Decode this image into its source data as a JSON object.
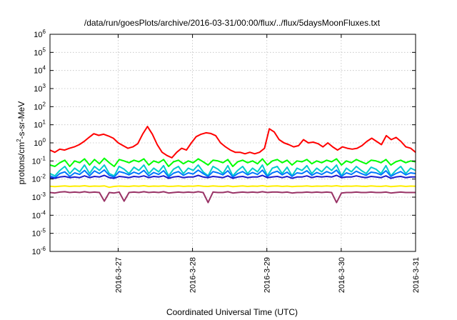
{
  "chart_data": {
    "type": "line",
    "title": "/data/run/goesPlots/archive/2016-03-31/00:00/flux/../flux/5daysMoonFluxes.txt",
    "xlabel": "Coordinated Universal Time (UTC)",
    "ylabel_parts": [
      "protons/cm",
      "2",
      "-s-sr-MeV"
    ],
    "y_scale": "log",
    "ylim_exp": [
      -6,
      6
    ],
    "y_ticks": [
      {
        "base": "10",
        "exp": "-6"
      },
      {
        "base": "10",
        "exp": "-5"
      },
      {
        "base": "10",
        "exp": "-4"
      },
      {
        "base": "10",
        "exp": "-3"
      },
      {
        "base": "10",
        "exp": "-2"
      },
      {
        "base": "10",
        "exp": "-1"
      },
      {
        "base": "10",
        "exp": "0"
      },
      {
        "base": "10",
        "exp": "1"
      },
      {
        "base": "10",
        "exp": "2"
      },
      {
        "base": "10",
        "exp": "3"
      },
      {
        "base": "10",
        "exp": "4"
      },
      {
        "base": "10",
        "exp": "5"
      },
      {
        "base": "10",
        "exp": "6"
      }
    ],
    "x_range": [
      "2016-03-26 02:00",
      "2016-03-31 00:00"
    ],
    "x_ticks": [
      "2016-3-27",
      "2016-3-28",
      "2016-3-29",
      "2016-3-30",
      "2016-3-31"
    ],
    "grid": true,
    "series": [
      {
        "color": "#ff0000",
        "values": [
          0.4,
          0.3,
          0.45,
          0.4,
          0.5,
          0.6,
          0.8,
          1.2,
          2.0,
          3.2,
          2.6,
          3.0,
          2.4,
          1.8,
          1.0,
          0.7,
          0.5,
          0.6,
          0.9,
          3.0,
          8.0,
          3.0,
          0.8,
          0.3,
          0.2,
          0.15,
          0.3,
          0.5,
          0.4,
          1.0,
          2.2,
          3.0,
          3.6,
          3.3,
          2.5,
          1.0,
          0.6,
          0.4,
          0.3,
          0.3,
          0.25,
          0.3,
          0.25,
          0.3,
          0.5,
          6.0,
          4.0,
          1.5,
          1.0,
          0.8,
          0.6,
          0.7,
          1.5,
          1.0,
          1.1,
          0.9,
          0.6,
          1.0,
          0.6,
          0.4,
          0.6,
          0.5,
          0.45,
          0.5,
          0.7,
          1.2,
          1.8,
          1.2,
          0.8,
          2.5,
          1.5,
          2.0,
          1.2,
          0.6,
          0.5,
          0.3
        ]
      },
      {
        "color": "#00ff00",
        "values": [
          0.06,
          0.05,
          0.08,
          0.11,
          0.05,
          0.1,
          0.08,
          0.13,
          0.06,
          0.12,
          0.07,
          0.14,
          0.08,
          0.05,
          0.12,
          0.1,
          0.08,
          0.11,
          0.09,
          0.13,
          0.06,
          0.1,
          0.08,
          0.12,
          0.05,
          0.09,
          0.11,
          0.07,
          0.1,
          0.08,
          0.13,
          0.09,
          0.06,
          0.11,
          0.1,
          0.08,
          0.12,
          0.05,
          0.09,
          0.11,
          0.08,
          0.1,
          0.07,
          0.13,
          0.06,
          0.1,
          0.12,
          0.08,
          0.11,
          0.06,
          0.1,
          0.09,
          0.12,
          0.07,
          0.1,
          0.08,
          0.11,
          0.09,
          0.13,
          0.06,
          0.1,
          0.08,
          0.12,
          0.09,
          0.07,
          0.11,
          0.1,
          0.08,
          0.12,
          0.06,
          0.09,
          0.11,
          0.08,
          0.1,
          0.09
        ]
      },
      {
        "color": "#00cccc",
        "values": [
          0.02,
          0.015,
          0.03,
          0.05,
          0.02,
          0.04,
          0.025,
          0.06,
          0.02,
          0.05,
          0.03,
          0.06,
          0.02,
          0.015,
          0.05,
          0.035,
          0.02,
          0.045,
          0.03,
          0.06,
          0.02,
          0.04,
          0.025,
          0.055,
          0.015,
          0.035,
          0.05,
          0.02,
          0.04,
          0.03,
          0.06,
          0.025,
          0.015,
          0.05,
          0.035,
          0.02,
          0.055,
          0.015,
          0.03,
          0.05,
          0.02,
          0.04,
          0.025,
          0.06,
          0.015,
          0.04,
          0.05,
          0.02,
          0.045,
          0.015,
          0.04,
          0.03,
          0.055,
          0.02,
          0.04,
          0.025,
          0.05,
          0.03,
          0.06,
          0.015,
          0.04,
          0.025,
          0.05,
          0.03,
          0.02,
          0.045,
          0.035,
          0.02,
          0.055,
          0.015,
          0.03,
          0.05,
          0.02,
          0.04,
          0.03
        ]
      },
      {
        "color": "#0077ff",
        "values": [
          0.015,
          0.012,
          0.02,
          0.025,
          0.014,
          0.022,
          0.018,
          0.03,
          0.015,
          0.028,
          0.02,
          0.032,
          0.016,
          0.013,
          0.026,
          0.022,
          0.017,
          0.024,
          0.019,
          0.03,
          0.015,
          0.023,
          0.018,
          0.029,
          0.013,
          0.021,
          0.026,
          0.016,
          0.022,
          0.019,
          0.031,
          0.02,
          0.014,
          0.026,
          0.022,
          0.017,
          0.029,
          0.013,
          0.02,
          0.026,
          0.017,
          0.023,
          0.018,
          0.031,
          0.014,
          0.022,
          0.027,
          0.017,
          0.024,
          0.014,
          0.022,
          0.02,
          0.029,
          0.016,
          0.023,
          0.018,
          0.026,
          0.02,
          0.031,
          0.014,
          0.022,
          0.018,
          0.027,
          0.02,
          0.016,
          0.024,
          0.022,
          0.017,
          0.029,
          0.014,
          0.02,
          0.026,
          0.017,
          0.022,
          0.02
        ]
      },
      {
        "color": "#1a1acc",
        "values": [
          0.012,
          0.011,
          0.013,
          0.014,
          0.012,
          0.013,
          0.012,
          0.015,
          0.012,
          0.014,
          0.013,
          0.016,
          0.012,
          0.011,
          0.014,
          0.013,
          0.012,
          0.014,
          0.013,
          0.015,
          0.012,
          0.014,
          0.013,
          0.015,
          0.011,
          0.013,
          0.014,
          0.012,
          0.013,
          0.013,
          0.016,
          0.013,
          0.012,
          0.014,
          0.013,
          0.012,
          0.015,
          0.011,
          0.013,
          0.014,
          0.012,
          0.013,
          0.013,
          0.016,
          0.012,
          0.013,
          0.014,
          0.012,
          0.014,
          0.011,
          0.013,
          0.013,
          0.015,
          0.012,
          0.014,
          0.013,
          0.014,
          0.013,
          0.016,
          0.012,
          0.013,
          0.013,
          0.015,
          0.013,
          0.012,
          0.014,
          0.013,
          0.012,
          0.015,
          0.011,
          0.013,
          0.014,
          0.012,
          0.013,
          0.013
        ]
      },
      {
        "color": "#ffee00",
        "values": [
          0.004,
          0.0038,
          0.004,
          0.0042,
          0.0039,
          0.0041,
          0.004,
          0.0043,
          0.0039,
          0.0041,
          0.004,
          0.0042,
          0.0035,
          0.0039,
          0.0041,
          0.004,
          0.0039,
          0.0042,
          0.004,
          0.0043,
          0.0039,
          0.0041,
          0.004,
          0.0042,
          0.0039,
          0.004,
          0.0042,
          0.0039,
          0.0041,
          0.004,
          0.0043,
          0.004,
          0.0039,
          0.0042,
          0.004,
          0.0039,
          0.0042,
          0.0038,
          0.004,
          0.0042,
          0.0039,
          0.0041,
          0.004,
          0.0043,
          0.0039,
          0.0041,
          0.0042,
          0.0039,
          0.0041,
          0.0038,
          0.004,
          0.004,
          0.0042,
          0.0039,
          0.0041,
          0.004,
          0.0042,
          0.004,
          0.0043,
          0.0039,
          0.0041,
          0.004,
          0.0042,
          0.004,
          0.0039,
          0.0042,
          0.004,
          0.0039,
          0.0042,
          0.0038,
          0.004,
          0.0042,
          0.0039,
          0.0041,
          0.004
        ]
      },
      {
        "color": "#993366",
        "values": [
          0.0018,
          0.0017,
          0.0019,
          0.002,
          0.0018,
          0.0019,
          0.0018,
          0.002,
          0.0018,
          0.0019,
          0.0018,
          0.0006,
          0.0018,
          0.0017,
          0.0019,
          0.0006,
          0.0018,
          0.0019,
          0.0018,
          0.002,
          0.0018,
          0.0019,
          0.0018,
          0.002,
          0.0017,
          0.0018,
          0.0019,
          0.0018,
          0.0019,
          0.0018,
          0.002,
          0.0018,
          0.0005,
          0.0019,
          0.0018,
          0.0018,
          0.002,
          0.0017,
          0.0018,
          0.0019,
          0.0018,
          0.0019,
          0.0018,
          0.002,
          0.0018,
          0.0019,
          0.0019,
          0.0018,
          0.0019,
          0.0017,
          0.0018,
          0.0018,
          0.0019,
          0.0018,
          0.0019,
          0.0018,
          0.0019,
          0.0018,
          0.0005,
          0.0017,
          0.0018,
          0.0018,
          0.0019,
          0.0018,
          0.0018,
          0.0019,
          0.0018,
          0.0018,
          0.0019,
          0.0017,
          0.0018,
          0.0019,
          0.0018,
          0.0018,
          0.0018
        ]
      }
    ]
  }
}
